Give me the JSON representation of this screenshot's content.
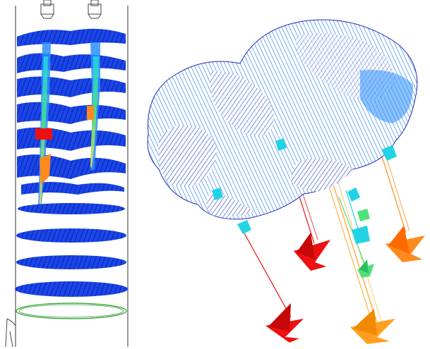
{
  "figure": {
    "left_panel": {
      "name": "vessel-cross-section-vector-field"
    },
    "right_panel": {
      "name": "3d-vector-cloud-with-arrows"
    }
  },
  "colors": {
    "background": "#ffffff",
    "outline": "#555555",
    "vectors_low": "#0b2cd8",
    "vectors_mid": "#2c8fff",
    "vectors_cyan": "#22d3e6",
    "vectors_green": "#4fe07a",
    "vectors_yellow": "#f6e046",
    "vectors_orange": "#ff8a1e",
    "vectors_red": "#ee1010",
    "ring_green": "#2a9d2a"
  },
  "icons": [
    "nozzle-icon",
    "arrowhead-icon"
  ]
}
